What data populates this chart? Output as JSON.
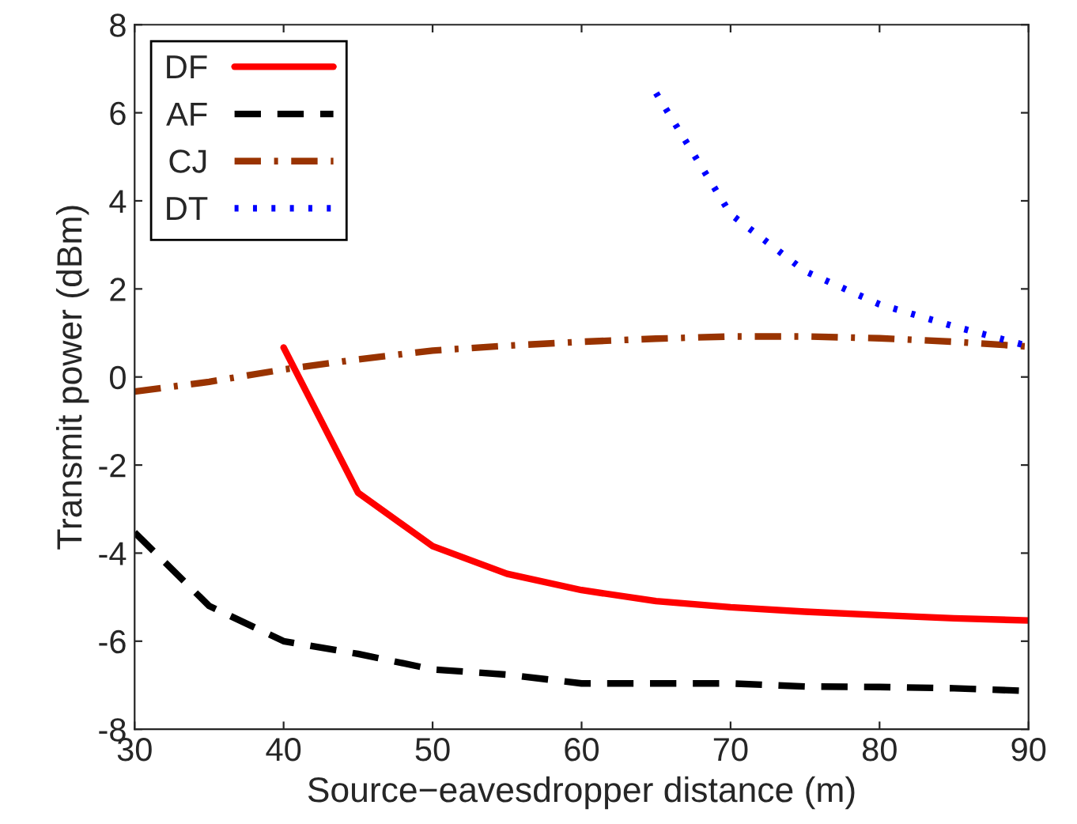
{
  "chart_data": {
    "type": "line",
    "xlabel": "Source−eavesdropper distance (m)",
    "ylabel": "Transmit power (dBm)",
    "xlim": [
      30,
      90
    ],
    "xticks": [
      30,
      40,
      50,
      60,
      70,
      80,
      90
    ],
    "ylim": [
      -8,
      8
    ],
    "yticks": [
      -8,
      -6,
      -4,
      -2,
      0,
      2,
      4,
      6,
      8
    ],
    "grid": false,
    "legend": "top left",
    "marker": "none",
    "series": [
      {
        "name": "DF",
        "color": "#ff0000",
        "line_style": "solid",
        "x": [
          40,
          45,
          50,
          55,
          60,
          65,
          70,
          75,
          80,
          85,
          90
        ],
        "values": [
          0.67,
          -2.63,
          -3.84,
          -4.47,
          -4.84,
          -5.09,
          -5.23,
          -5.33,
          -5.41,
          -5.48,
          -5.53
        ]
      },
      {
        "name": "AF",
        "color": "#000000",
        "line_style": "dashed",
        "x": [
          30,
          35,
          40,
          45,
          50,
          55,
          60,
          65,
          70,
          75,
          80,
          85,
          90
        ],
        "values": [
          -3.53,
          -5.2,
          -6.0,
          -6.29,
          -6.64,
          -6.76,
          -6.96,
          -6.96,
          -6.96,
          -7.03,
          -7.04,
          -7.07,
          -7.13
        ]
      },
      {
        "name": "CJ",
        "color": "#993300",
        "line_style": "dashdot",
        "x": [
          30,
          35,
          40,
          45,
          50,
          55,
          60,
          65,
          70,
          75,
          80,
          85,
          90
        ],
        "values": [
          -0.33,
          -0.11,
          0.17,
          0.4,
          0.6,
          0.71,
          0.8,
          0.87,
          0.92,
          0.92,
          0.88,
          0.8,
          0.69
        ]
      },
      {
        "name": "DT",
        "color": "#0000ff",
        "line_style": "dotted",
        "x": [
          65,
          70,
          75,
          80,
          85,
          90
        ],
        "values": [
          6.45,
          3.7,
          2.4,
          1.65,
          1.15,
          0.7
        ]
      }
    ]
  }
}
